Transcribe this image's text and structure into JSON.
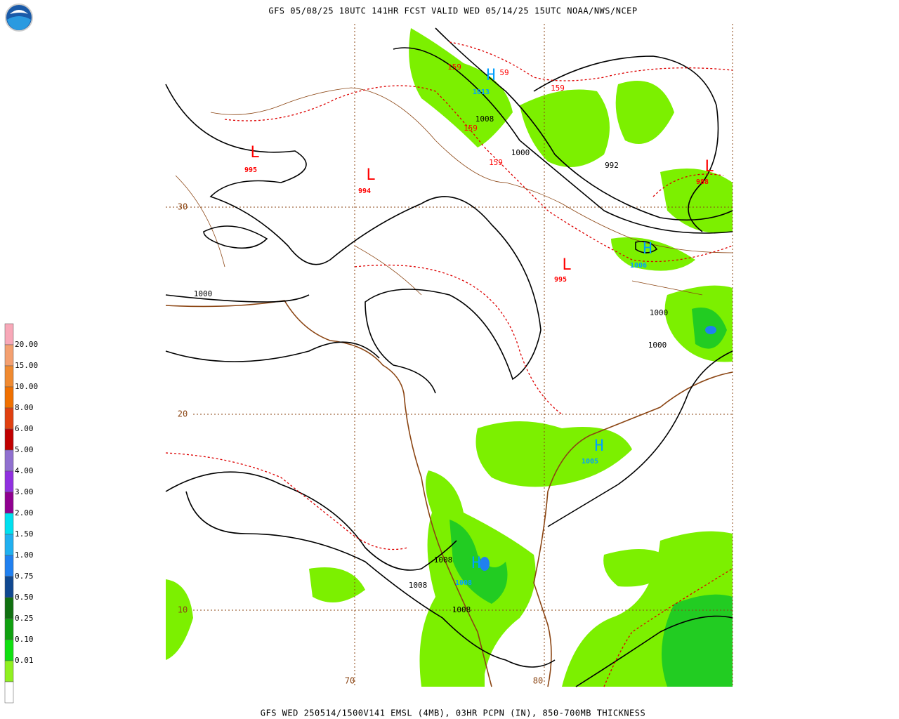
{
  "header": {
    "title": "GFS 05/08/25 18UTC 141HR FCST VALID WED 05/14/25 15UTC NOAA/NWS/NCEP"
  },
  "footer": {
    "caption": "GFS WED 250514/1500V141 EMSL (4MB), 03HR PCPN (IN), 850-700MB THICKNESS"
  },
  "legend": {
    "labels": [
      "20.00",
      "15.00",
      "10.00",
      "8.00",
      "6.00",
      "5.00",
      "4.00",
      "3.00",
      "2.00",
      "1.50",
      "1.00",
      "0.75",
      "0.50",
      "0.25",
      "0.10",
      "0.01"
    ],
    "colors": [
      "#f8a8b8",
      "#f4a070",
      "#f08a30",
      "#f07000",
      "#e04010",
      "#c00000",
      "#9070d0",
      "#9030e0",
      "#900090",
      "#00e0f0",
      "#20b0f0",
      "#2080f0",
      "#104890",
      "#107010",
      "#10a010",
      "#10e010",
      "#90f020",
      "#ffffff"
    ]
  },
  "map": {
    "centers": [
      {
        "symbol": "L",
        "value": "995",
        "color": "#ff0000"
      },
      {
        "symbol": "L",
        "value": "994",
        "color": "#ff0000"
      },
      {
        "symbol": "H",
        "value": "1013",
        "color": "#00a0ff"
      },
      {
        "symbol": "L",
        "value": "995",
        "color": "#ff0000"
      },
      {
        "symbol": "L",
        "value": "988",
        "color": "#ff0000"
      },
      {
        "symbol": "H",
        "value": "1006",
        "color": "#00a0ff"
      },
      {
        "symbol": "H",
        "value": "1005",
        "color": "#00a0ff"
      },
      {
        "symbol": "H",
        "value": "1008",
        "color": "#00a0ff"
      }
    ],
    "thickness_labels": [
      "159",
      "59",
      "159",
      "159",
      "159"
    ],
    "isobar_labels": [
      "1008",
      "1000",
      "992",
      "1000",
      "1000",
      "1000",
      "1008",
      "1008",
      "1008"
    ],
    "grid_labels": [
      "30",
      "20",
      "10",
      "70",
      "80"
    ]
  }
}
